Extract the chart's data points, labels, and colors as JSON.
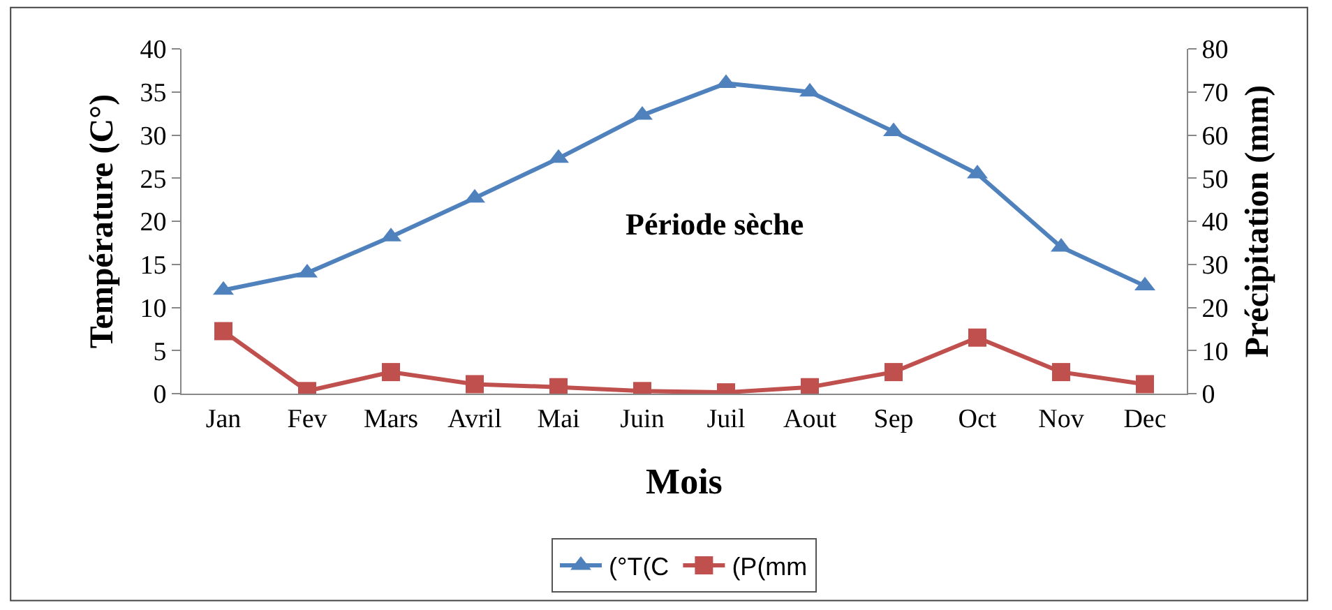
{
  "chart_data": {
    "type": "line",
    "xlabel": "Mois",
    "ylabel": "Température (C°)",
    "y2label": "Précipitation (mm)",
    "categories": [
      "Jan",
      "Fev",
      "Mars",
      "Avril",
      "Mai",
      "Juin",
      "Juil",
      "Aout",
      "Sep",
      "Oct",
      "Nov",
      "Dec"
    ],
    "series": [
      {
        "name": "(°T(C",
        "color": "#4f81bd",
        "marker": "triangle",
        "values": [
          12,
          14,
          18.2,
          22.7,
          27.3,
          32.3,
          36,
          35,
          30.4,
          25.5,
          17,
          12.5
        ]
      },
      {
        "name": "(P(mm",
        "color": "#c0504d",
        "marker": "square",
        "axis": "y2",
        "values": [
          14.5,
          0.6,
          5,
          2.2,
          1.5,
          0.6,
          0.3,
          1.5,
          5,
          13,
          5,
          2.2
        ]
      }
    ],
    "ylim": [
      0,
      40
    ],
    "yticks": [
      0,
      5,
      10,
      15,
      20,
      25,
      30,
      35,
      40
    ],
    "y2lim": [
      0,
      80
    ],
    "y2ticks": [
      0,
      10,
      20,
      30,
      40,
      50,
      60,
      70,
      80
    ],
    "annotations": [
      "Période sèche"
    ],
    "legend": "bottom",
    "line_style": "solid"
  }
}
